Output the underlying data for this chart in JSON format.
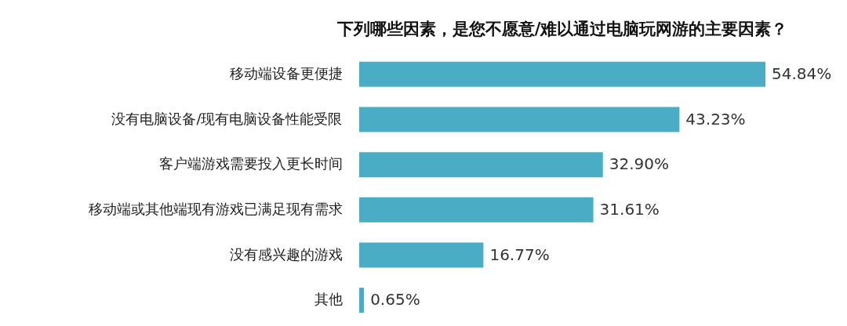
{
  "chart_data": {
    "type": "bar",
    "orientation": "horizontal",
    "title": "下列哪些因素，是您不愿意/难以通过电脑玩网游的主要因素？",
    "categories": [
      "移动端设备更便捷",
      "没有电脑设备/现有电脑设备性能受限",
      "客户端游戏需要投入更长时间",
      "移动端或其他端现有游戏已满足现有需求",
      "没有感兴趣的游戏",
      "其他"
    ],
    "values": [
      54.84,
      43.23,
      32.9,
      31.61,
      16.77,
      0.65
    ],
    "value_labels": [
      "54.84%",
      "43.23%",
      "32.90%",
      "31.61%",
      "16.77%",
      "0.65%"
    ],
    "color": "#4bacc6"
  }
}
